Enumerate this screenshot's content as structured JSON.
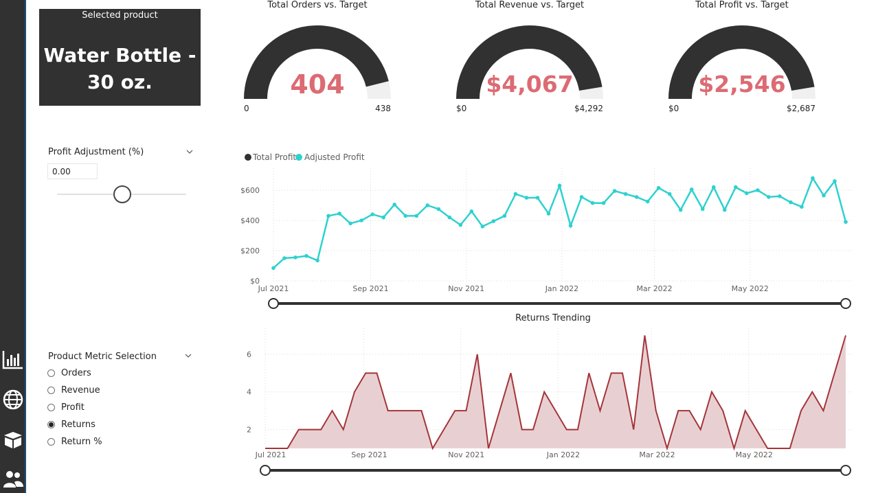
{
  "selected_card": {
    "label": "Selected product",
    "value_line1": "Water Bottle -",
    "value_line2": "30 oz."
  },
  "gauges": [
    {
      "title": "Total Orders vs. Target",
      "value_label": "404",
      "value": 404,
      "min_label": "0",
      "max_label": "438",
      "max": 438
    },
    {
      "title": "Total Revenue vs. Target",
      "value_label": "$4,067",
      "value": 4067,
      "min_label": "$0",
      "max_label": "$4,292",
      "max": 4292
    },
    {
      "title": "Total Profit vs. Target",
      "value_label": "$2,546",
      "value": 2546,
      "min_label": "$0",
      "max_label": "$2,687",
      "max": 2687
    }
  ],
  "profit_slicer": {
    "title": "Profit Adjustment (%)",
    "value": "0.00"
  },
  "metric_slicer": {
    "title": "Product Metric Selection",
    "options": [
      "Orders",
      "Revenue",
      "Profit",
      "Returns",
      "Return %"
    ],
    "selected": "Returns"
  },
  "nav_icons": [
    "bar-chart-icon",
    "globe-icon",
    "box-icon",
    "users-icon"
  ],
  "colors": {
    "dark": "#313131",
    "gauge_value": "#dc6b73",
    "profit_line": "#2ed1cf",
    "returns_line": "#a4343a",
    "returns_fill": "#e8d0d2"
  },
  "chart_data": [
    {
      "type": "line",
      "title": "",
      "legend": [
        "Total Profit",
        "Adjusted Profit"
      ],
      "legend_placement": "top-left",
      "x_ticks": [
        "Jul 2021",
        "Sep 2021",
        "Nov 2021",
        "Jan 2022",
        "Mar 2022",
        "May 2022"
      ],
      "y_ticks": [
        "$0",
        "$200",
        "$400",
        "$600"
      ],
      "ylim": [
        0,
        700
      ],
      "x_start": "2021-07-01",
      "x_end": "2022-07-01",
      "series": [
        {
          "name": "Adjusted Profit",
          "values": [
            85,
            150,
            155,
            165,
            135,
            430,
            445,
            380,
            400,
            440,
            420,
            505,
            430,
            430,
            500,
            475,
            420,
            370,
            460,
            360,
            395,
            430,
            575,
            550,
            550,
            445,
            630,
            365,
            555,
            515,
            515,
            595,
            575,
            555,
            525,
            615,
            575,
            470,
            605,
            475,
            620,
            470,
            620,
            580,
            600,
            555,
            560,
            520,
            490,
            680,
            565,
            660,
            390
          ]
        }
      ],
      "grid": true
    },
    {
      "type": "area",
      "title": "Returns Trending",
      "x_ticks": [
        "Jul 2021",
        "Sep 2021",
        "Nov 2021",
        "Jan 2022",
        "Mar 2022",
        "May 2022"
      ],
      "y_ticks": [
        "2",
        "4",
        "6"
      ],
      "ylim": [
        1,
        7.2
      ],
      "x_start": "2021-07-01",
      "x_end": "2022-07-01",
      "series": [
        {
          "name": "Returns",
          "values": [
            1,
            1,
            1,
            2,
            2,
            2,
            3,
            2,
            4,
            5,
            5,
            3,
            3,
            3,
            3,
            1,
            2,
            3,
            3,
            6,
            1,
            3,
            5,
            2,
            2,
            4,
            3,
            2,
            2,
            5,
            3,
            5,
            5,
            2,
            7,
            3,
            1,
            3,
            3,
            2,
            4,
            3,
            1,
            3,
            2,
            1,
            1,
            1,
            3,
            4,
            3,
            5,
            7
          ]
        }
      ],
      "grid": true
    }
  ]
}
